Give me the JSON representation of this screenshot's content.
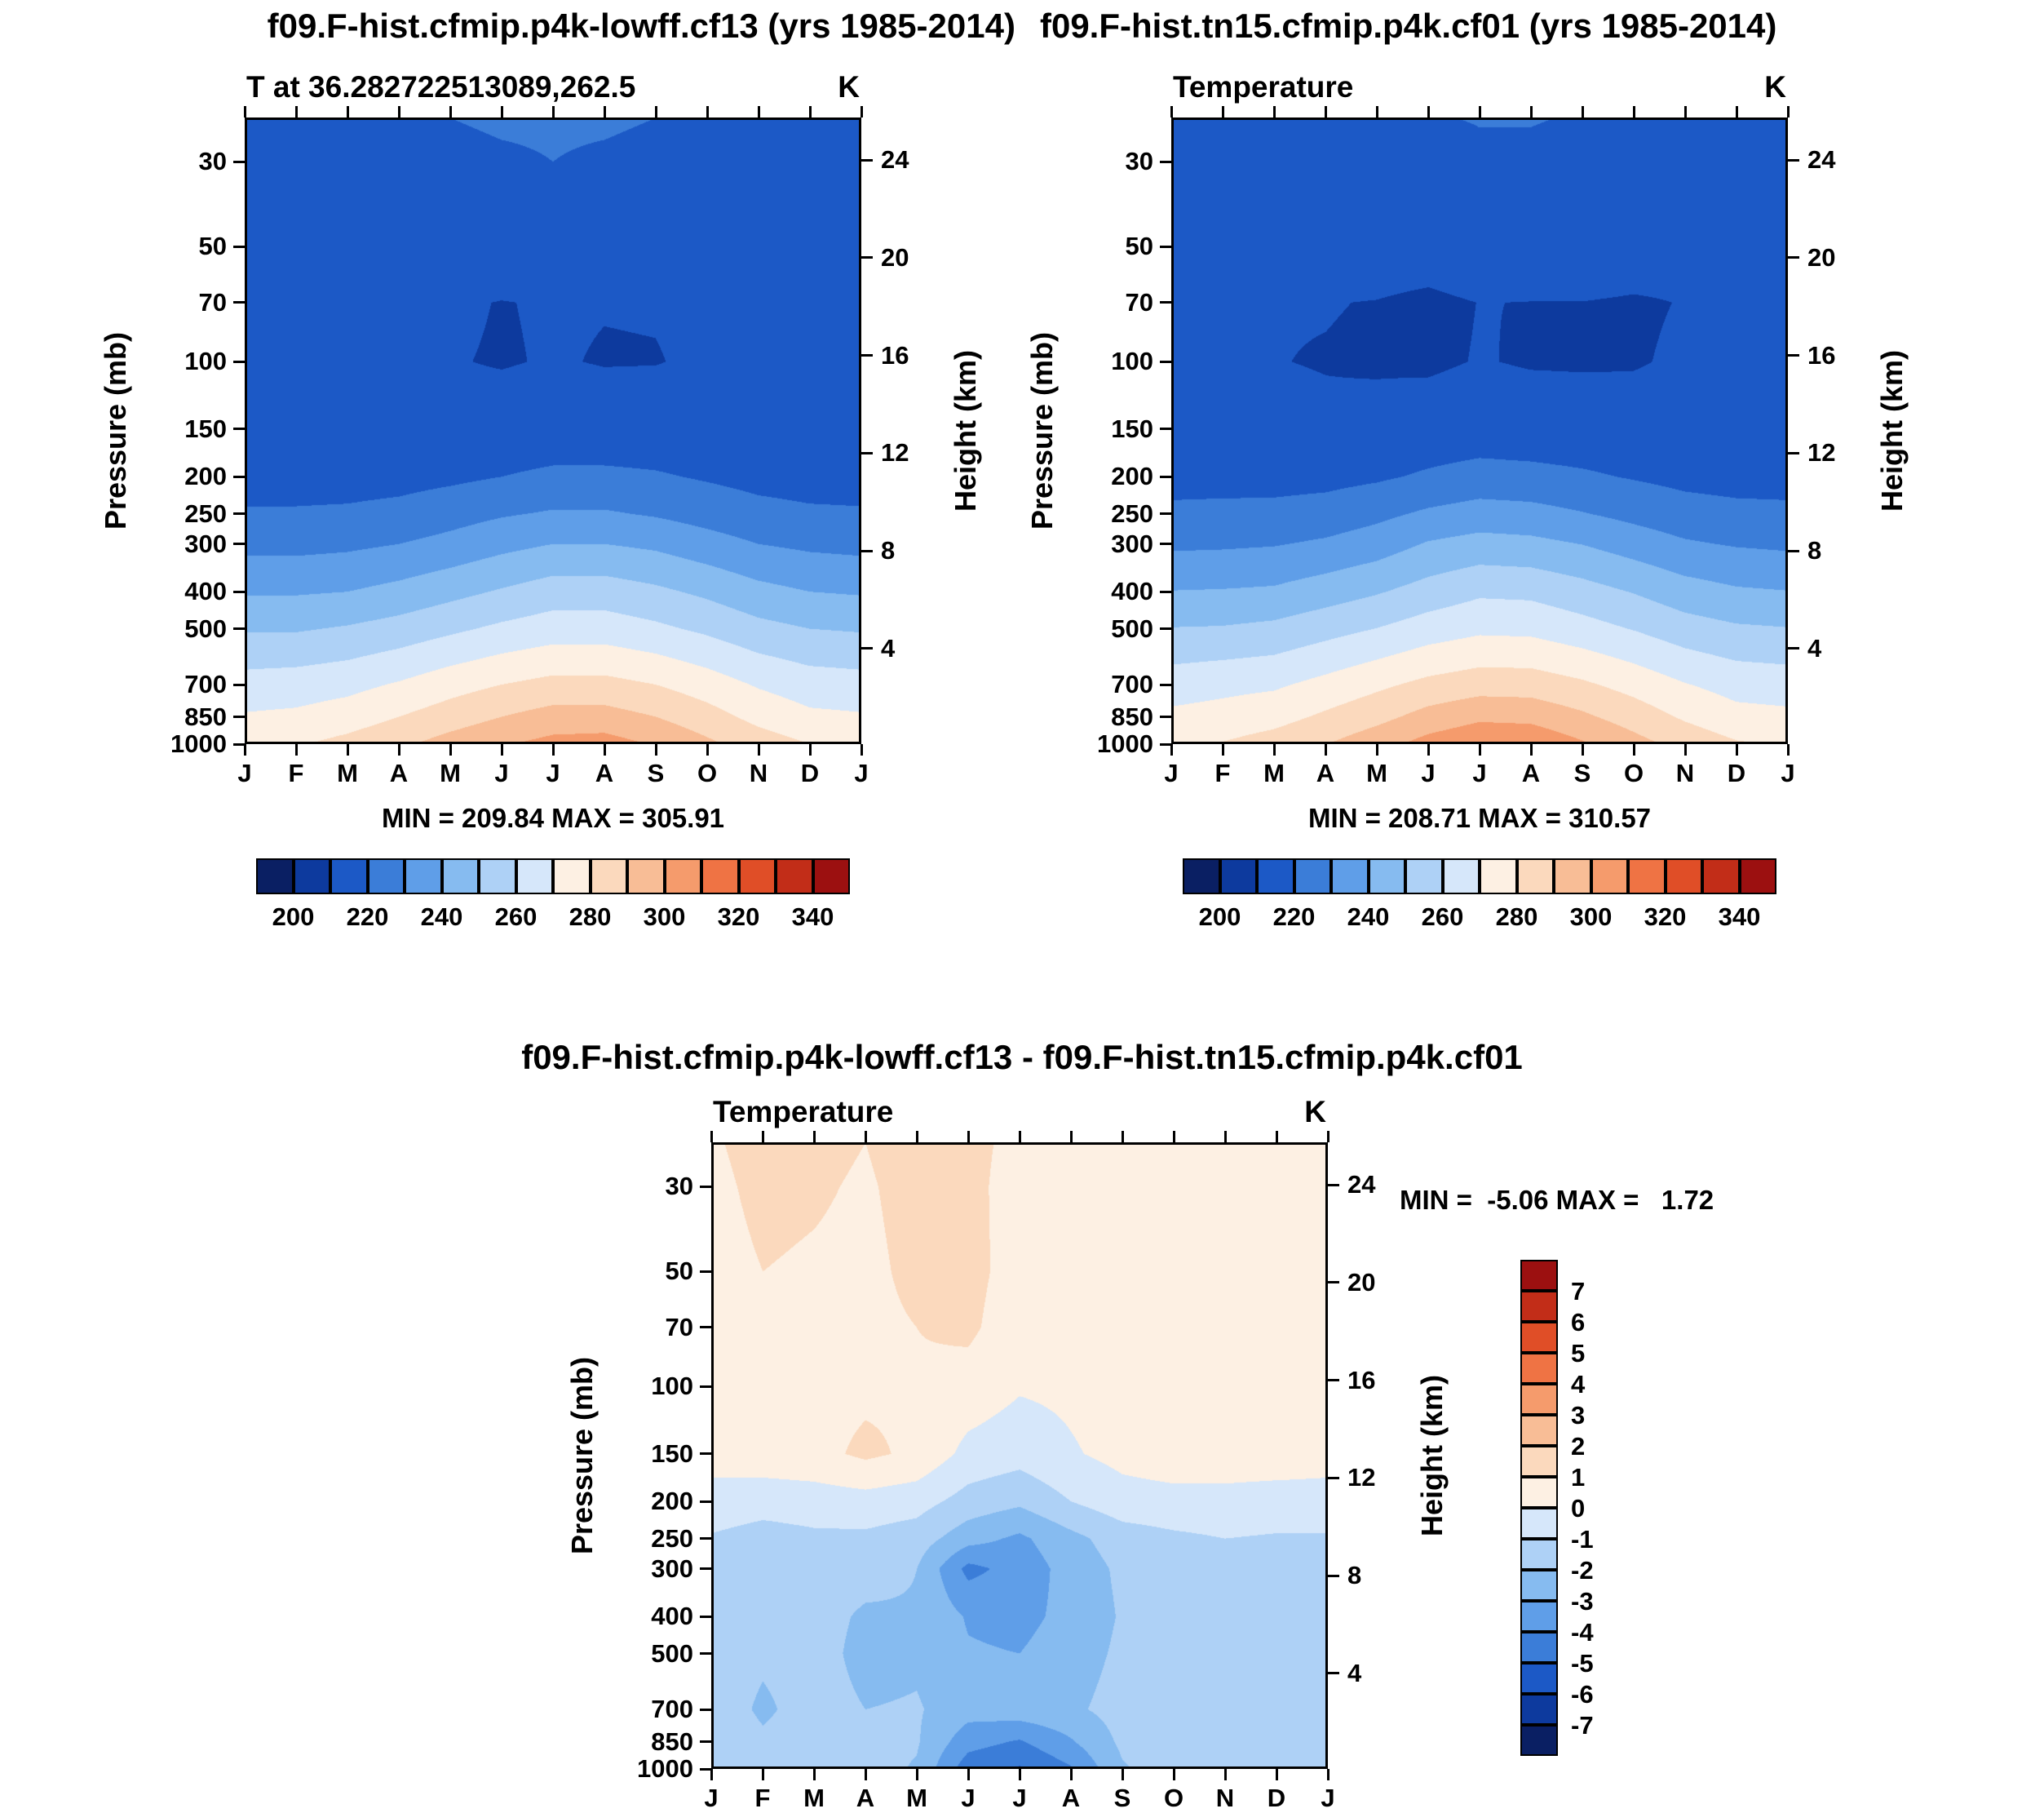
{
  "page": {
    "title_left": "f09.F-hist.cfmip.p4k-lowff.cf13 (yrs 1985-2014)",
    "title_right": "f09.F-hist.tn15.cfmip.p4k.cf01 (yrs 1985-2014)",
    "diff_title": "f09.F-hist.cfmip.p4k-lowff.cf13 - f09.F-hist.tn15.cfmip.p4k.cf01"
  },
  "style": {
    "background": "#ffffff",
    "text_color": "#000000",
    "palette": [
      "#0a1f63",
      "#0d3a9e",
      "#1c59c6",
      "#3b7dd8",
      "#5f9ee8",
      "#86bbf0",
      "#aed1f6",
      "#d6e7fa",
      "#fdf0e3",
      "#fbd9bd",
      "#f8bd96",
      "#f59b6c",
      "#ef7344",
      "#e04e27",
      "#c22d18",
      "#9c1010"
    ]
  },
  "chart_data": [
    {
      "type": "heatmap",
      "panel": "top-left",
      "title": "T at 36.282722513089,262.5",
      "units": "K",
      "stats": "MIN = 209.84 MAX = 305.91",
      "ylabel_left": "Pressure (mb)",
      "ylabel_right": "Height (km)",
      "x_ticklabels": [
        "J",
        "F",
        "M",
        "A",
        "M",
        "J",
        "J",
        "A",
        "S",
        "O",
        "N",
        "D",
        "J"
      ],
      "y_ticks_pressure_mb": [
        30,
        50,
        70,
        100,
        150,
        200,
        250,
        300,
        400,
        500,
        700,
        850,
        1000
      ],
      "y_ticks_height_km": [
        24,
        20,
        16,
        12,
        8,
        4
      ],
      "y_range_mb": [
        23,
        1000
      ],
      "colorbar": {
        "orientation": "horizontal",
        "boundaries_start": 190,
        "boundary_step": 10,
        "n_cells": 16,
        "tick_labels": [
          "200",
          "220",
          "240",
          "260",
          "280",
          "300",
          "320",
          "340"
        ]
      },
      "grid": {
        "pressure_levels_mb": [
          23,
          30,
          50,
          70,
          100,
          150,
          200,
          250,
          300,
          400,
          500,
          700,
          850,
          1000
        ],
        "values": [
          [
            217,
            217,
            218,
            219,
            220,
            221,
            221,
            221,
            220,
            218,
            217,
            217,
            217
          ],
          [
            216,
            216,
            216,
            217,
            218,
            219,
            220,
            219,
            218,
            217,
            216,
            216,
            216
          ],
          [
            213,
            213,
            213,
            214,
            215,
            215,
            216,
            215,
            215,
            214,
            213,
            213,
            213
          ],
          [
            211.5,
            211.2,
            211.0,
            211.0,
            210.8,
            209.8,
            210.5,
            210.2,
            210.3,
            211.0,
            211.2,
            211.4,
            211.5
          ],
          [
            211.5,
            211.0,
            210.8,
            210.6,
            210.3,
            209.6,
            210.4,
            209.7,
            209.8,
            210.8,
            211.2,
            211.4,
            211.5
          ],
          [
            213,
            212.5,
            212,
            212,
            212.5,
            213,
            213.5,
            213.5,
            213.5,
            213,
            213,
            213,
            213
          ],
          [
            216,
            216,
            216,
            216.5,
            218,
            220,
            222,
            222,
            221,
            219,
            217,
            216,
            216
          ],
          [
            221,
            221,
            221.5,
            223,
            226,
            229,
            231,
            231,
            229,
            226,
            223,
            221.5,
            221
          ],
          [
            227,
            227,
            228,
            230,
            233,
            237,
            240,
            240,
            238,
            234,
            230,
            228,
            227
          ],
          [
            239,
            239,
            240,
            243,
            247,
            251,
            255,
            255,
            252,
            248,
            243,
            240,
            239
          ],
          [
            249,
            249,
            251,
            254,
            258,
            262,
            265,
            265,
            262,
            258,
            253,
            250,
            249
          ],
          [
            264,
            265,
            267,
            271,
            276,
            280,
            283,
            283,
            280,
            275,
            269,
            265,
            264
          ],
          [
            271,
            272,
            275,
            280,
            285,
            290,
            294,
            294,
            290,
            284,
            277,
            272,
            271
          ],
          [
            278,
            279,
            283,
            288,
            294,
            299,
            303,
            304,
            299,
            292,
            285,
            280,
            278
          ]
        ]
      }
    },
    {
      "type": "heatmap",
      "panel": "top-right",
      "title": "Temperature",
      "units": "K",
      "stats": "MIN = 208.71 MAX = 310.57",
      "ylabel_left": "Pressure (mb)",
      "ylabel_right": "Height (km)",
      "x_ticklabels": [
        "J",
        "F",
        "M",
        "A",
        "M",
        "J",
        "J",
        "A",
        "S",
        "O",
        "N",
        "D",
        "J"
      ],
      "y_ticks_pressure_mb": [
        30,
        50,
        70,
        100,
        150,
        200,
        250,
        300,
        400,
        500,
        700,
        850,
        1000
      ],
      "y_ticks_height_km": [
        24,
        20,
        16,
        12,
        8,
        4
      ],
      "y_range_mb": [
        23,
        1000
      ],
      "colorbar": {
        "orientation": "horizontal",
        "boundaries_start": 190,
        "boundary_step": 10,
        "n_cells": 16,
        "tick_labels": [
          "200",
          "220",
          "240",
          "260",
          "280",
          "300",
          "320",
          "340"
        ]
      },
      "grid": {
        "pressure_levels_mb": [
          23,
          30,
          50,
          70,
          100,
          150,
          200,
          250,
          300,
          400,
          500,
          700,
          850,
          1000
        ],
        "values": [
          [
            216.1,
            215.7,
            216.8,
            218.0,
            218.6,
            219.8,
            220.2,
            220.4,
            219.5,
            217.3,
            216.1,
            216.0,
            216.1
          ],
          [
            215.2,
            214.8,
            214.9,
            216.1,
            216.7,
            217.8,
            219.3,
            218.5,
            217.6,
            216.4,
            215.2,
            215.1,
            215.2
          ],
          [
            212.3,
            212.0,
            212.1,
            213.2,
            213.8,
            213.7,
            215.4,
            214.6,
            214.6,
            213.4,
            212.3,
            212.2,
            212.3
          ],
          [
            210.9,
            210.4,
            210.2,
            210.2,
            209.8,
            208.6,
            210.1,
            209.9,
            209.9,
            209.4,
            210.2,
            210.7,
            210.9
          ],
          [
            211.0,
            210.3,
            210.1,
            209.8,
            209.4,
            209.0,
            210.3,
            209.5,
            209.4,
            209.6,
            210.7,
            210.8,
            211.0
          ],
          [
            212.6,
            211.9,
            211.3,
            210.8,
            211.7,
            213.3,
            214.1,
            213.6,
            213.2,
            212.5,
            212.5,
            212.5,
            212.6
          ],
          [
            216.4,
            216.6,
            216.5,
            216.9,
            218.6,
            221.4,
            223.8,
            223.0,
            221.4,
            219.3,
            217.3,
            216.4,
            216.4
          ],
          [
            222.1,
            222.4,
            222.7,
            224.2,
            227.5,
            231.6,
            234.2,
            233.3,
            230.5,
            227.2,
            224.0,
            222.6,
            222.1
          ],
          [
            228.2,
            228.6,
            229.4,
            231.5,
            235.0,
            240.9,
            243.6,
            242.6,
            239.8,
            235.4,
            231.2,
            229.2,
            228.2
          ],
          [
            240.3,
            240.7,
            241.5,
            245.2,
            249.1,
            254.1,
            258.3,
            257.7,
            253.9,
            249.5,
            244.3,
            241.3,
            240.3
          ],
          [
            250.4,
            250.8,
            252.5,
            256.4,
            260.2,
            264.9,
            268.0,
            267.5,
            263.8,
            259.5,
            254.4,
            251.4,
            250.4
          ],
          [
            265.3,
            267.2,
            268.5,
            273.0,
            277.9,
            282.6,
            285.4,
            285.2,
            281.6,
            276.4,
            270.5,
            266.3,
            265.3
          ],
          [
            272.2,
            273.8,
            276.4,
            281.7,
            286.9,
            293.6,
            298.1,
            297.1,
            291.8,
            285.5,
            278.6,
            273.2,
            272.2
          ],
          [
            279.0,
            280.5,
            284.3,
            289.6,
            296.1,
            303.6,
            308.0,
            308.1,
            301.1,
            293.5,
            286.5,
            281.0,
            279.0
          ]
        ]
      }
    },
    {
      "type": "heatmap",
      "panel": "bottom-difference",
      "title": "Temperature",
      "units": "K",
      "stats": "MIN =  -5.06 MAX =   1.72",
      "ylabel_left": "Pressure (mb)",
      "ylabel_right": "Height (km)",
      "x_ticklabels": [
        "J",
        "F",
        "M",
        "A",
        "M",
        "J",
        "J",
        "A",
        "S",
        "O",
        "N",
        "D",
        "J"
      ],
      "y_ticks_pressure_mb": [
        30,
        50,
        70,
        100,
        150,
        200,
        250,
        300,
        400,
        500,
        700,
        850,
        1000
      ],
      "y_ticks_height_km": [
        24,
        20,
        16,
        12,
        8,
        4
      ],
      "y_range_mb": [
        23,
        1000
      ],
      "colorbar": {
        "orientation": "vertical",
        "boundaries_start": -8,
        "boundary_step": 1,
        "n_cells": 16,
        "tick_labels": [
          "7",
          "6",
          "5",
          "4",
          "3",
          "2",
          "1",
          "0",
          "-1",
          "-2",
          "-3",
          "-4",
          "-5",
          "-6",
          "-7"
        ]
      },
      "grid": {
        "pressure_levels_mb": [
          23,
          30,
          50,
          70,
          100,
          150,
          200,
          250,
          300,
          400,
          500,
          700,
          850,
          1000
        ],
        "values": [
          [
            0.9,
            1.3,
            1.2,
            1.0,
            1.4,
            1.2,
            0.8,
            0.6,
            0.5,
            0.7,
            0.9,
            1.0,
            0.9
          ],
          [
            0.8,
            1.2,
            1.1,
            0.9,
            1.3,
            1.2,
            0.7,
            0.5,
            0.4,
            0.6,
            0.8,
            0.9,
            0.8
          ],
          [
            0.7,
            1.0,
            0.9,
            0.8,
            1.2,
            1.3,
            0.6,
            0.4,
            0.4,
            0.6,
            0.7,
            0.8,
            0.7
          ],
          [
            0.6,
            0.8,
            0.8,
            0.8,
            1.0,
            1.2,
            0.4,
            0.3,
            0.4,
            0.5,
            0.6,
            0.7,
            0.6
          ],
          [
            0.5,
            0.7,
            0.7,
            0.8,
            0.9,
            0.6,
            0.1,
            0.2,
            0.4,
            0.5,
            0.5,
            0.6,
            0.5
          ],
          [
            0.4,
            0.6,
            0.7,
            1.2,
            0.8,
            -0.3,
            -0.6,
            -0.1,
            0.3,
            0.5,
            0.5,
            0.5,
            0.4
          ],
          [
            -0.4,
            -0.6,
            -0.5,
            -0.4,
            -0.6,
            -1.4,
            -1.8,
            -1.0,
            -0.4,
            -0.3,
            -0.3,
            -0.4,
            -0.4
          ],
          [
            -1.1,
            -1.4,
            -1.2,
            -1.2,
            -1.5,
            -2.6,
            -3.2,
            -2.3,
            -1.5,
            -1.2,
            -1.0,
            -1.1,
            -1.1
          ],
          [
            -1.2,
            -1.6,
            -1.4,
            -1.5,
            -2.0,
            -4.3,
            -3.6,
            -2.6,
            -1.8,
            -1.4,
            -1.2,
            -1.2,
            -1.2
          ],
          [
            -1.3,
            -1.7,
            -1.5,
            -2.2,
            -2.1,
            -3.1,
            -3.3,
            -2.7,
            -1.9,
            -1.5,
            -1.3,
            -1.3,
            -1.3
          ],
          [
            -1.4,
            -1.8,
            -1.5,
            -2.4,
            -2.2,
            -2.9,
            -3.0,
            -2.5,
            -1.8,
            -1.5,
            -1.4,
            -1.4,
            -1.4
          ],
          [
            -1.3,
            -2.2,
            -1.5,
            -2.0,
            -1.9,
            -2.6,
            -2.4,
            -2.2,
            -1.6,
            -1.4,
            -1.5,
            -1.3,
            -1.3
          ],
          [
            -1.2,
            -1.8,
            -1.4,
            -1.7,
            -1.9,
            -3.6,
            -4.1,
            -3.1,
            -1.8,
            -1.5,
            -1.6,
            -1.2,
            -1.2
          ],
          [
            -1.0,
            -1.5,
            -1.3,
            -1.6,
            -2.1,
            -4.6,
            -5.1,
            -4.1,
            -2.1,
            -1.5,
            -1.5,
            -1.0,
            -1.0
          ]
        ]
      }
    }
  ]
}
